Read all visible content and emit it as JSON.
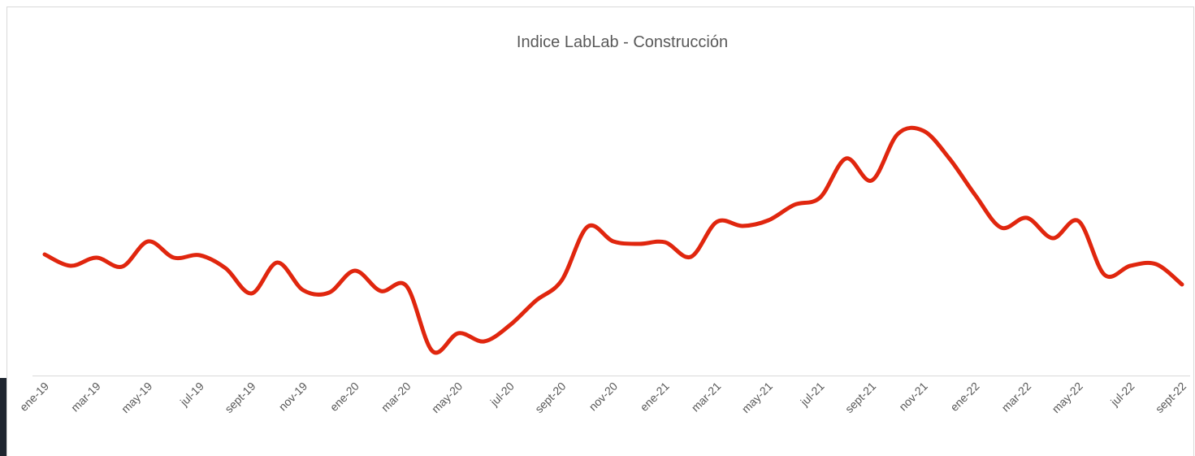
{
  "chart_data": {
    "type": "line",
    "title": "Indice LabLab - Construcción",
    "categories": [
      "ene-19",
      null,
      "mar-19",
      null,
      "may-19",
      null,
      "jul-19",
      null,
      "sept-19",
      null,
      "nov-19",
      null,
      "ene-20",
      null,
      "mar-20",
      null,
      "may-20",
      null,
      "jul-20",
      null,
      "sept-20",
      null,
      "nov-20",
      null,
      "ene-21",
      null,
      "mar-21",
      null,
      "may-21",
      null,
      "jul-21",
      null,
      "sept-21",
      null,
      "nov-21",
      null,
      "ene-22",
      null,
      "mar-22",
      null,
      "may-22",
      null,
      "jul-22",
      null,
      "sept-22"
    ],
    "values": [
      149,
      135,
      145,
      134,
      165,
      145,
      148,
      132,
      101,
      139,
      105,
      102,
      129,
      104,
      110,
      30,
      52,
      42,
      62,
      92,
      117,
      183,
      165,
      162,
      164,
      146,
      189,
      184,
      191,
      210,
      219,
      267,
      240,
      297,
      301,
      267,
      222,
      182,
      194,
      169,
      190,
      124,
      135,
      137,
      112
    ],
    "color": "#e0260e",
    "ylim": [
      0,
      400
    ]
  }
}
